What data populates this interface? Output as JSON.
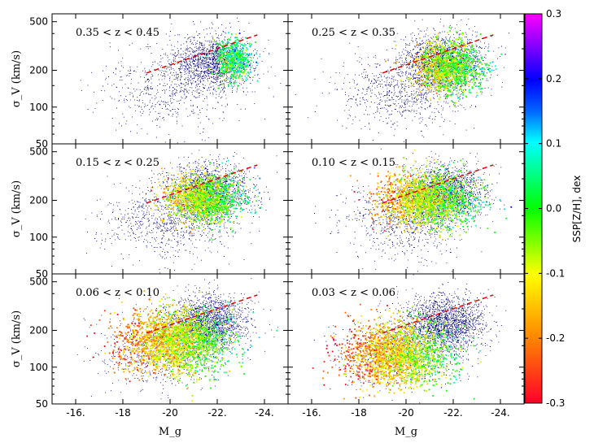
{
  "chart_data": {
    "type": "scatter",
    "layout": "3x2 grid of panels with shared axes and a shared colorbar",
    "xlabel": "M_g",
    "ylabel": "σ_V (km/s)",
    "x_axis": {
      "reversed": true,
      "xlim": [
        -15.0,
        -25.0
      ],
      "ticks": [
        -16,
        -18,
        -20,
        -22,
        -24
      ],
      "tick_labels": [
        "-16.",
        "-18",
        "-20",
        "-22.",
        "-24."
      ]
    },
    "y_axis": {
      "scale": "log",
      "ylim": [
        50,
        580
      ],
      "ticks": [
        50,
        100,
        200,
        500
      ],
      "tick_labels": [
        "50",
        "100",
        "200",
        "500"
      ]
    },
    "colorbar": {
      "label": "SSP[Z/H], dex",
      "range": [
        -0.3,
        0.3
      ],
      "ticks": [
        0.3,
        0.2,
        0.1,
        0.0,
        -0.1,
        -0.2,
        -0.3
      ],
      "tick_labels": [
        "0.3",
        "0.2",
        "0.1",
        "0.0",
        "-0.1",
        "-0.2",
        "-0.3"
      ],
      "colormap": "gist_rainbow (red at -0.3, yellow, green, cyan, blue, magenta at 0.3)"
    },
    "background_population": {
      "color": "#00007a",
      "description": "all galaxies, dense navy point cloud"
    },
    "reference_relation": {
      "style": "red dashed line",
      "color": "#e00000",
      "points": [
        [
          -19.0,
          190
        ],
        [
          -23.7,
          390
        ]
      ]
    },
    "panels": [
      {
        "label": "0.35 < z < 0.45",
        "colored_center": [
          -22.7,
          250
        ],
        "colored_spread": [
          0.35,
          0.2
        ],
        "metallicity_mean": 0.03,
        "colored_count": 500
      },
      {
        "label": "0.25 < z < 0.35",
        "colored_center": [
          -21.8,
          215
        ],
        "colored_spread": [
          0.7,
          0.24
        ],
        "metallicity_mean": -0.05,
        "colored_count": 1100
      },
      {
        "label": "0.15 < z < 0.25",
        "colored_center": [
          -21.4,
          210
        ],
        "colored_spread": [
          0.8,
          0.22
        ],
        "metallicity_mean": -0.06,
        "colored_count": 1300
      },
      {
        "label": "0.10 < z < 0.15",
        "colored_center": [
          -20.9,
          205
        ],
        "colored_spread": [
          1.0,
          0.25
        ],
        "metallicity_mean": -0.08,
        "colored_count": 1600
      },
      {
        "label": "0.06 < z < 0.10",
        "colored_center": [
          -20.2,
          165
        ],
        "colored_spread": [
          1.1,
          0.3
        ],
        "metallicity_mean": -0.1,
        "colored_count": 2000
      },
      {
        "label": "0.03 < z < 0.06",
        "colored_center": [
          -19.6,
          130
        ],
        "colored_spread": [
          1.1,
          0.3
        ],
        "metallicity_mean": -0.12,
        "colored_count": 1800
      }
    ]
  }
}
